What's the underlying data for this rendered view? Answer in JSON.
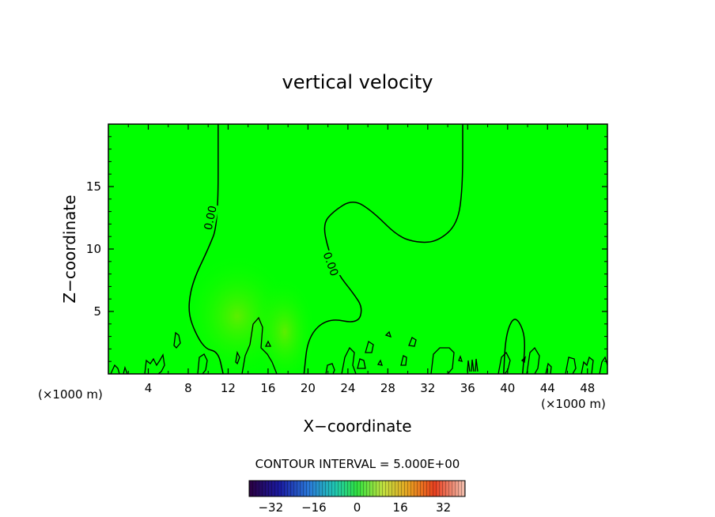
{
  "chart_data": {
    "type": "contour",
    "title": "vertical velocity",
    "xlabel": "X−coordinate",
    "ylabel": "Z−coordinate",
    "x_unit_left": "(×1000 m)",
    "x_unit_right": "(×1000 m)",
    "xlim": [
      0,
      50
    ],
    "ylim": [
      0,
      20
    ],
    "x_ticks": [
      4,
      8,
      12,
      16,
      20,
      24,
      28,
      32,
      36,
      40,
      44,
      48
    ],
    "y_ticks": [
      5,
      10,
      15
    ],
    "background_color": "#00ff00",
    "contour_label": "0.00",
    "contour_interval_text": "CONTOUR INTERVAL = 5.000E+00",
    "colorbar": {
      "range": [
        -40,
        40
      ],
      "ticks": [
        -32,
        -16,
        0,
        16,
        32
      ]
    },
    "zero_contours": [
      {
        "name": "left",
        "points": [
          [
            11,
            20
          ],
          [
            11,
            12
          ],
          [
            10,
            10
          ],
          [
            8.5,
            7.5
          ],
          [
            8,
            5.5
          ],
          [
            8.3,
            4
          ],
          [
            9.6,
            2
          ],
          [
            11,
            1.8
          ],
          [
            11.5,
            0
          ]
        ]
      },
      {
        "name": "center",
        "points": [
          [
            35.5,
            20
          ],
          [
            35.5,
            15
          ],
          [
            35,
            12
          ],
          [
            33,
            10.6
          ],
          [
            31,
            10.5
          ],
          [
            29,
            11
          ],
          [
            26.5,
            13
          ],
          [
            24.5,
            14
          ],
          [
            22.5,
            13
          ],
          [
            21.5,
            12
          ],
          [
            22,
            10
          ],
          [
            23,
            8
          ],
          [
            24.5,
            6.5
          ],
          [
            25.5,
            5.3
          ],
          [
            25,
            4
          ],
          [
            22,
            4.5
          ],
          [
            20,
            3
          ],
          [
            19.6,
            0
          ]
        ]
      },
      {
        "name": "right-bump",
        "points": [
          [
            39.6,
            0
          ],
          [
            39.8,
            3
          ],
          [
            40.5,
            4.5
          ],
          [
            41.2,
            4.2
          ],
          [
            41.8,
            2.8
          ],
          [
            41.5,
            0
          ]
        ]
      }
    ]
  }
}
